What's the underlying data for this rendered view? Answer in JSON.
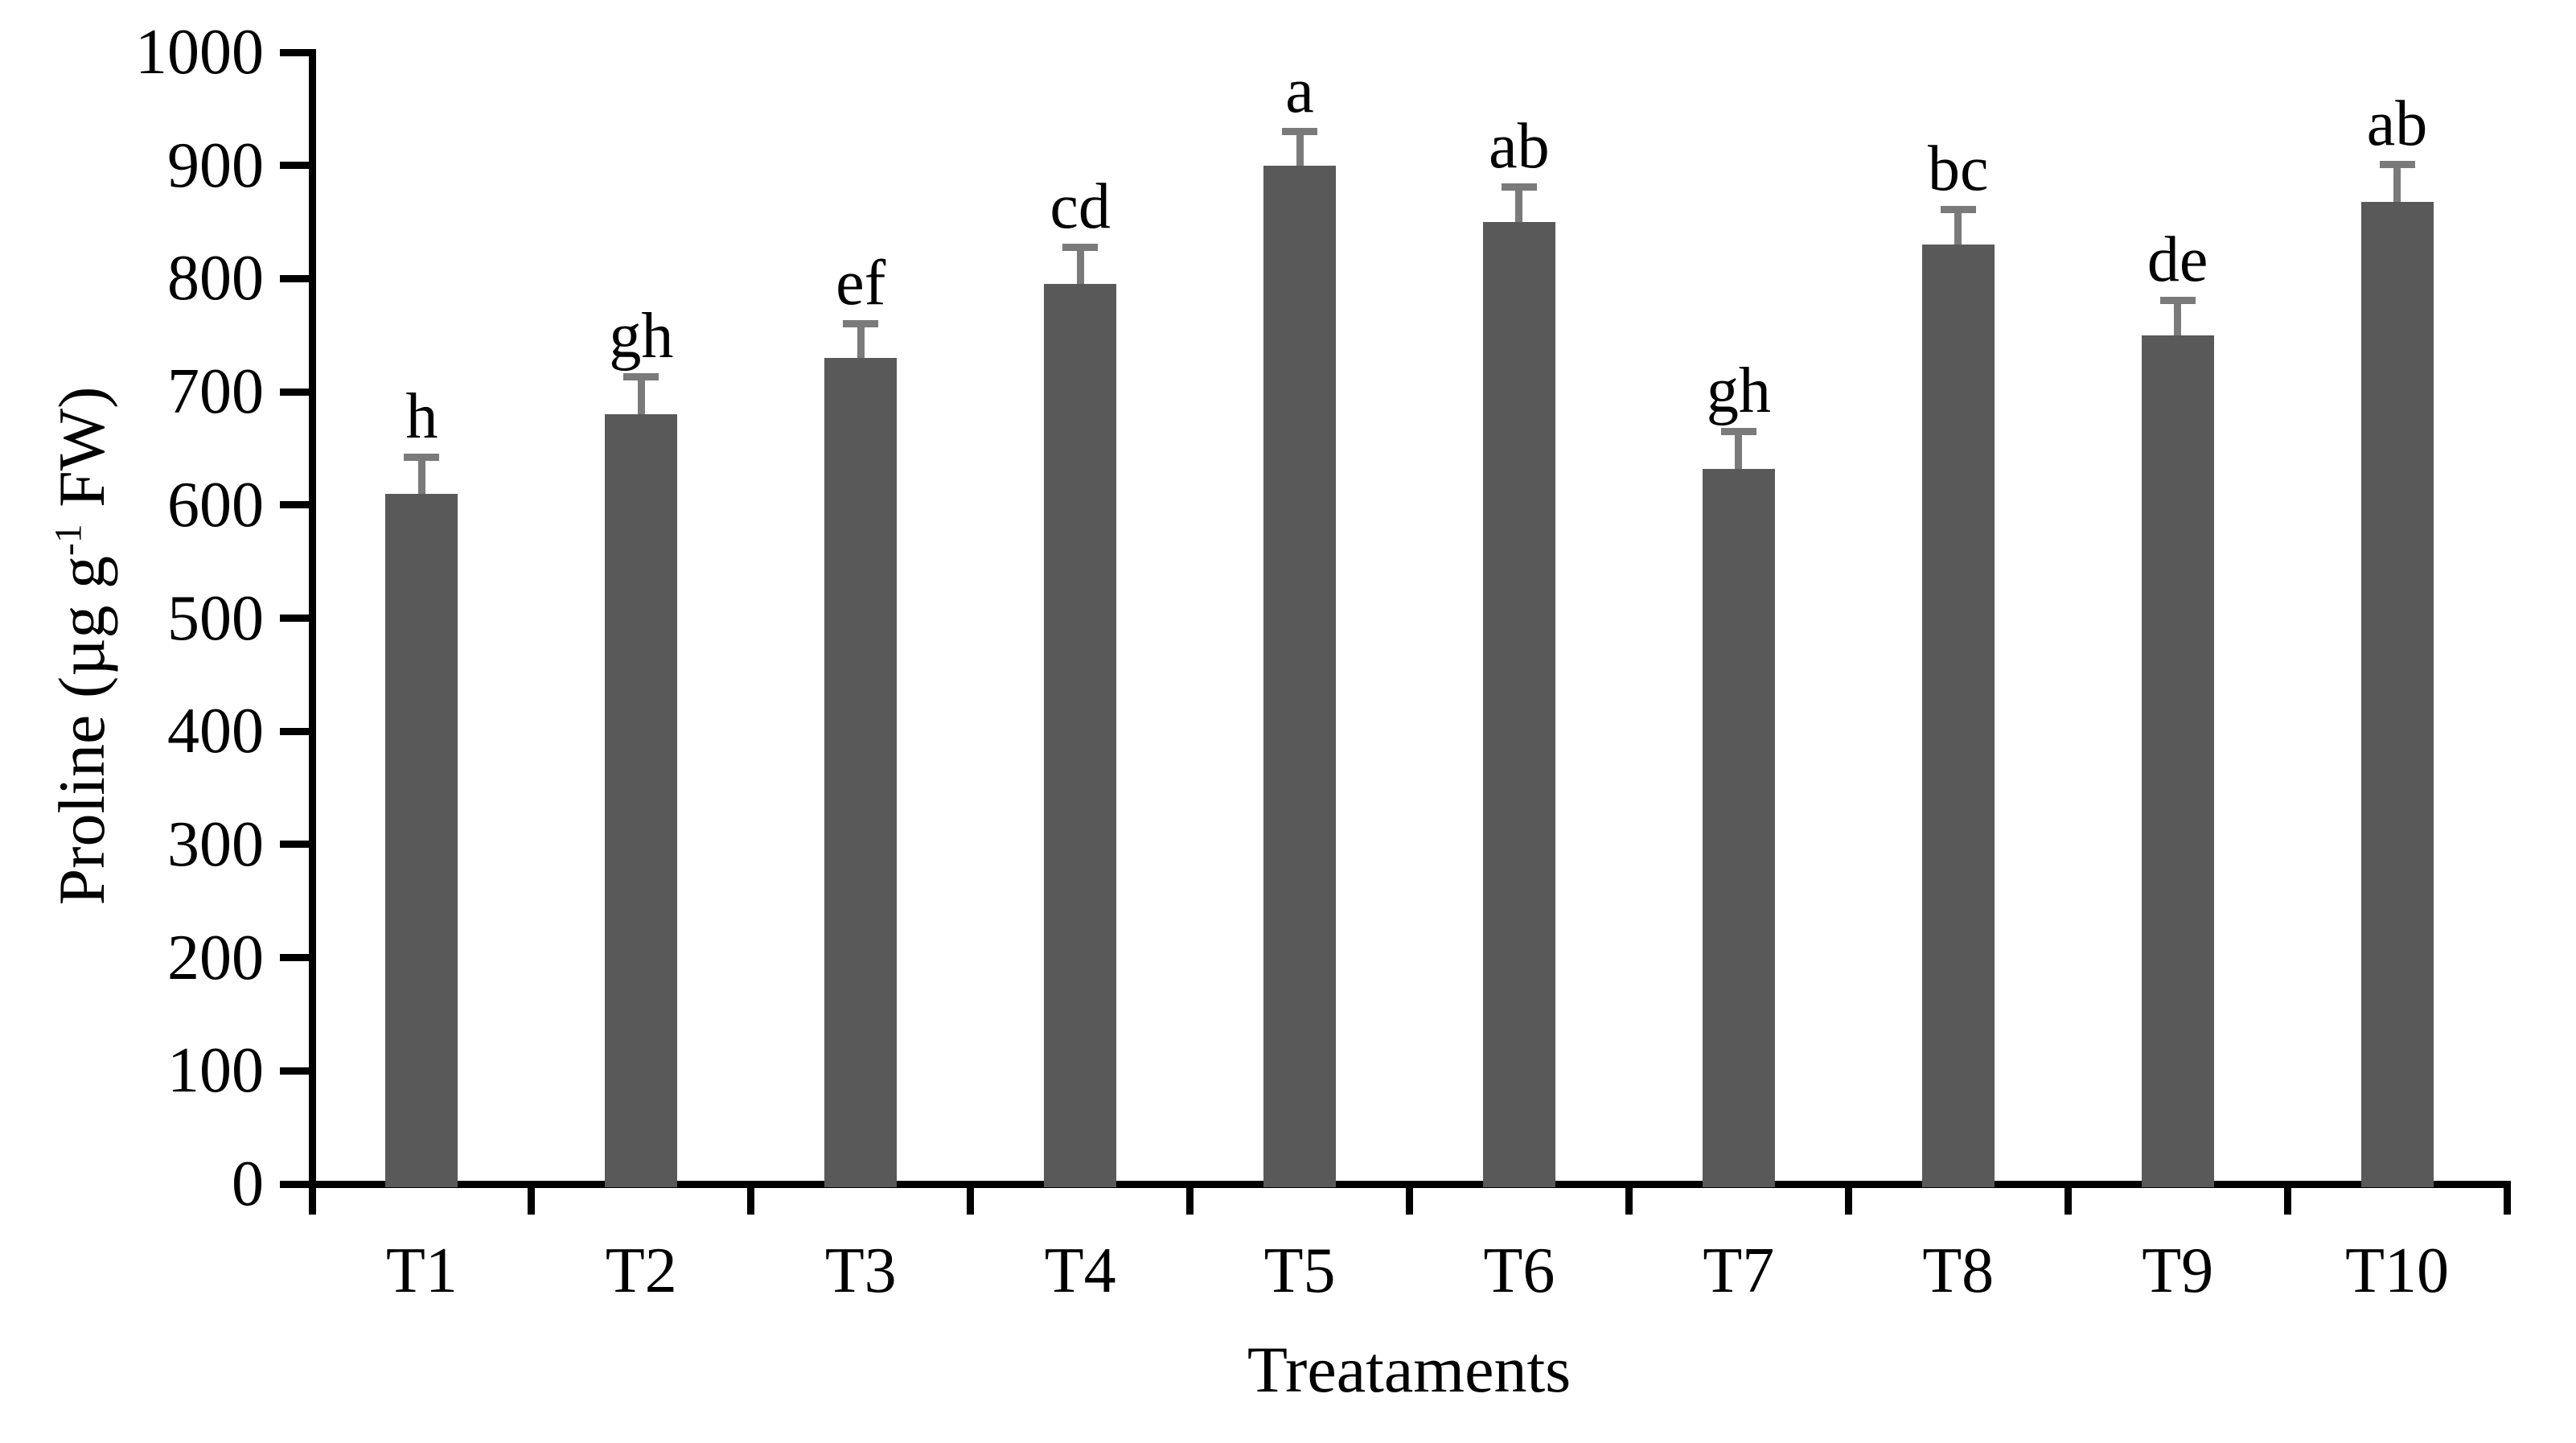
{
  "figure": {
    "kind": "statistical bar chart with error bars and significance letters"
  },
  "axes": {
    "y_label_prefix": "Proline (µg g",
    "y_label_sup": "-1",
    "y_label_suffix": " FW)",
    "x_label": "Treataments"
  },
  "chart_data": {
    "type": "bar",
    "title": "",
    "xlabel": "Treataments",
    "ylabel": "Proline (µg g-1 FW)",
    "categories": [
      "T1",
      "T2",
      "T3",
      "T4",
      "T5",
      "T6",
      "T7",
      "T8",
      "T9",
      "T10"
    ],
    "values": [
      610,
      680,
      730,
      795,
      900,
      850,
      632,
      830,
      750,
      868
    ],
    "errors_plus": [
      32,
      33,
      30,
      33,
      30,
      31,
      33,
      31,
      31,
      33
    ],
    "sig_letters": [
      "h",
      "gh",
      "ef",
      "cd",
      "a",
      "ab",
      "gh",
      "bc",
      "de",
      "ab"
    ],
    "ylim": [
      0,
      1000
    ],
    "y_ticks": [
      0,
      100,
      200,
      300,
      400,
      500,
      600,
      700,
      800,
      900,
      1000
    ],
    "grid": false,
    "legend": false,
    "bar_color": "#595959",
    "error_bar_color": "#7a7a7a",
    "axis_color": "#000000"
  }
}
